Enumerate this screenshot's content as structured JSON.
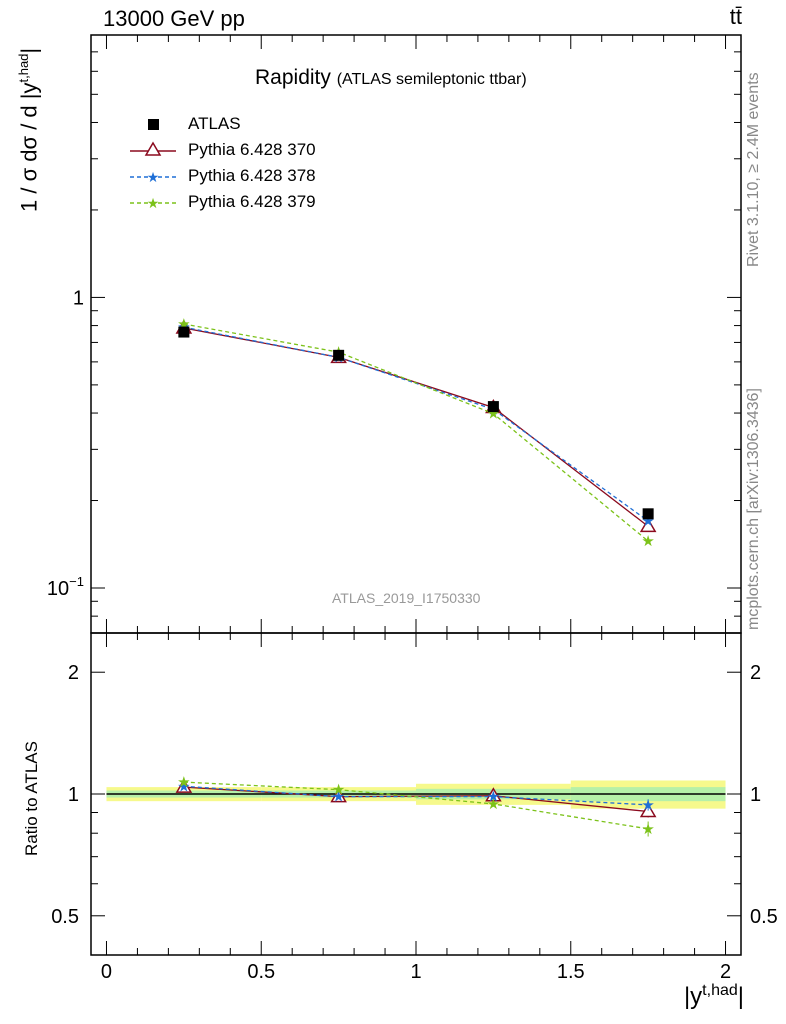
{
  "header": {
    "energy_label": "13000 GeV pp",
    "process_label": "tt̄"
  },
  "side_labels": {
    "rivet": "Rivet 3.1.10, ≥ 2.4M events",
    "source": "mcplots.cern.ch [arXiv:1306.3436]"
  },
  "chart_data": {
    "type": "line",
    "title": "Rapidity",
    "subtitle": "(ATLAS semileptonic ttbar)",
    "analysis_id": "ATLAS_2019_I1750330",
    "xlabel": "|y^{t,had}|",
    "ylabel": "1 / σ dσ / d |y^{t,had}|",
    "ratio_ylabel": "Ratio to ATLAS",
    "xlim": [
      -0.05,
      2.05
    ],
    "ylim": [
      0.07,
      8.0
    ],
    "yscale": "log",
    "ratio_ylim": [
      0.4,
      2.5
    ],
    "x_ticks": [
      "0",
      "0.5",
      "1",
      "1.5",
      "2"
    ],
    "y_ticks": [
      "1",
      "10^-1"
    ],
    "ratio_ticks": [
      "0.5",
      "1",
      "2"
    ],
    "legend_position": "top-left",
    "x": [
      0.25,
      0.75,
      1.25,
      1.75
    ],
    "x_edges": [
      0.0,
      0.5,
      1.0,
      1.5,
      2.0
    ],
    "series": [
      {
        "name": "ATLAS",
        "marker": "square",
        "color": "#000000",
        "values": [
          0.76,
          0.632,
          0.421,
          0.18
        ],
        "ratio_band_inner": [
          0.02,
          0.02,
          0.03,
          0.04
        ],
        "ratio_band_outer": [
          0.04,
          0.04,
          0.06,
          0.08
        ]
      },
      {
        "name": "Pythia 6.428 370",
        "marker": "triangle",
        "line": "solid",
        "color": "#8b0a1e",
        "values": [
          0.785,
          0.622,
          0.418,
          0.163
        ],
        "ratio": [
          1.04,
          0.985,
          0.99,
          0.905
        ],
        "ratio_err": [
          0.01,
          0.01,
          0.01,
          0.03
        ]
      },
      {
        "name": "Pythia 6.428 378",
        "marker": "star",
        "line": "dashed",
        "color": "#1f6fd6",
        "values": [
          0.79,
          0.622,
          0.412,
          0.17
        ],
        "ratio": [
          1.045,
          0.985,
          0.985,
          0.94
        ],
        "ratio_err": [
          0.01,
          0.01,
          0.01,
          0.03
        ]
      },
      {
        "name": "Pythia 6.428 379",
        "marker": "star",
        "line": "dashed",
        "color": "#7cc21a",
        "values": [
          0.81,
          0.648,
          0.398,
          0.145
        ],
        "ratio": [
          1.07,
          1.025,
          0.945,
          0.82
        ],
        "ratio_err": [
          0.01,
          0.015,
          0.015,
          0.035
        ]
      }
    ]
  }
}
